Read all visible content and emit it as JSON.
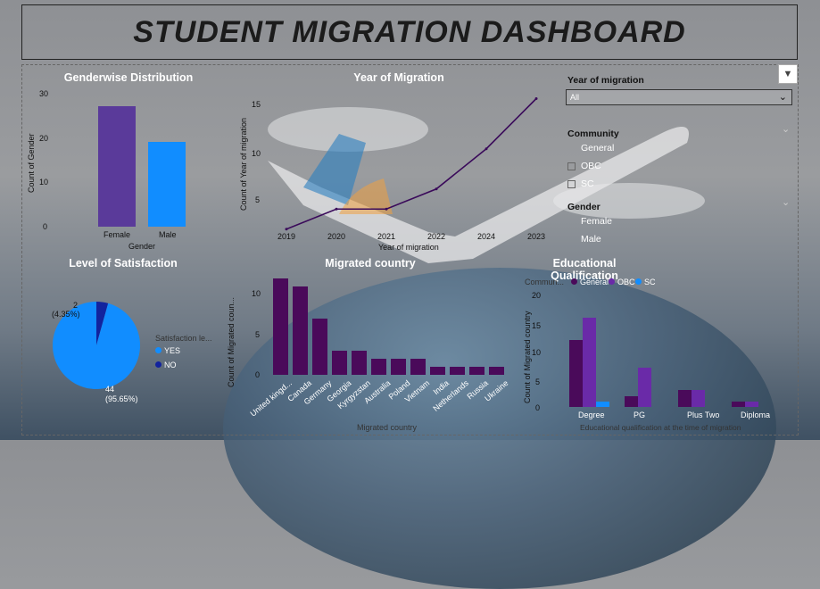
{
  "dashboard_title": "STUDENT MIGRATION DASHBOARD",
  "colors": {
    "purple": "#5a3a9a",
    "blue": "#118dff",
    "dark_purple": "#4a0a5a",
    "line": "#3a0a5a",
    "navy": "#12239e"
  },
  "gender_chart": {
    "title": "Genderwise Distribution",
    "ylabel": "Count of Gender",
    "xlabel": "Gender",
    "y_ticks": [
      "30",
      "20",
      "10",
      "0"
    ],
    "categories": [
      "Female",
      "Male"
    ]
  },
  "year_chart": {
    "title": "Year of Migration",
    "ylabel": "Count of Year of migration",
    "xlabel": "Year of migration",
    "y_ticks": [
      "15",
      "10",
      "5"
    ],
    "x_ticks": [
      "2019",
      "2020",
      "2021",
      "2022",
      "2024",
      "2023"
    ]
  },
  "satisfaction_chart": {
    "title": "Level of Satisfaction",
    "legend_title": "Satisfaction le...",
    "legend": [
      "YES",
      "NO"
    ],
    "label_no_count": "2",
    "label_no_pct": "(4.35%)",
    "label_yes_count": "44",
    "label_yes_pct": "(95.65%)"
  },
  "country_chart": {
    "title": "Migrated country",
    "ylabel": "Count of Migrated coun...",
    "xlabel": "Migrated country",
    "y_ticks": [
      "10",
      "5",
      "0"
    ]
  },
  "education_chart": {
    "title": "Educational Qualification",
    "legend_title": "Commun...",
    "legend": [
      "General",
      "OBC",
      "SC"
    ],
    "ylabel": "Count of Migrated country",
    "xlabel": "Educational qualification at the time of migration",
    "y_ticks": [
      "20",
      "15",
      "10",
      "5",
      "0"
    ]
  },
  "filters": {
    "year_title": "Year of migration",
    "year_value": "All",
    "community_title": "Community",
    "community_items": [
      "General",
      "OBC",
      "SC"
    ],
    "gender_title": "Gender",
    "gender_items": [
      "Female",
      "Male"
    ]
  },
  "chart_data": [
    {
      "type": "bar",
      "title": "Genderwise Distribution",
      "xlabel": "Gender",
      "ylabel": "Count of Gender",
      "categories": [
        "Female",
        "Male"
      ],
      "values": [
        27,
        19
      ],
      "ylim": [
        0,
        30
      ],
      "colors": [
        "#5a3a9a",
        "#118dff"
      ]
    },
    {
      "type": "line",
      "title": "Year of Migration",
      "xlabel": "Year of migration",
      "ylabel": "Count of Year of migration",
      "x": [
        "2019",
        "2020",
        "2021",
        "2022",
        "2024",
        "2023"
      ],
      "values": [
        1,
        3,
        3,
        5,
        9,
        14
      ],
      "ylim": [
        0,
        16
      ]
    },
    {
      "type": "pie",
      "title": "Level of Satisfaction",
      "categories": [
        "YES",
        "NO"
      ],
      "values": [
        44,
        2
      ],
      "colors": [
        "#118dff",
        "#12239e"
      ]
    },
    {
      "type": "bar",
      "title": "Migrated country",
      "xlabel": "Migrated country",
      "ylabel": "Count of Migrated coun...",
      "categories": [
        "United kingd...",
        "Canada",
        "Germany",
        "Georgia",
        "Kyrgyzstan",
        "Australia",
        "Poland",
        "Vietnam",
        "India",
        "Netherlands",
        "Russia",
        "Ukraine"
      ],
      "values": [
        12,
        11,
        7,
        3,
        3,
        2,
        2,
        2,
        1,
        1,
        1,
        1
      ],
      "ylim": [
        0,
        13
      ]
    },
    {
      "type": "bar",
      "title": "Educational Qualification",
      "xlabel": "Educational qualification at the time of migration",
      "ylabel": "Count of Migrated country",
      "categories": [
        "Degree",
        "PG",
        "Plus Two",
        "Diploma"
      ],
      "series": [
        {
          "name": "General",
          "values": [
            12,
            2,
            3,
            1
          ],
          "color": "#4a0a5a"
        },
        {
          "name": "OBC",
          "values": [
            16,
            7,
            3,
            1
          ],
          "color": "#6a2aa8"
        },
        {
          "name": "SC",
          "values": [
            1,
            0,
            0,
            0
          ],
          "color": "#118dff"
        }
      ],
      "ylim": [
        0,
        22
      ]
    }
  ]
}
